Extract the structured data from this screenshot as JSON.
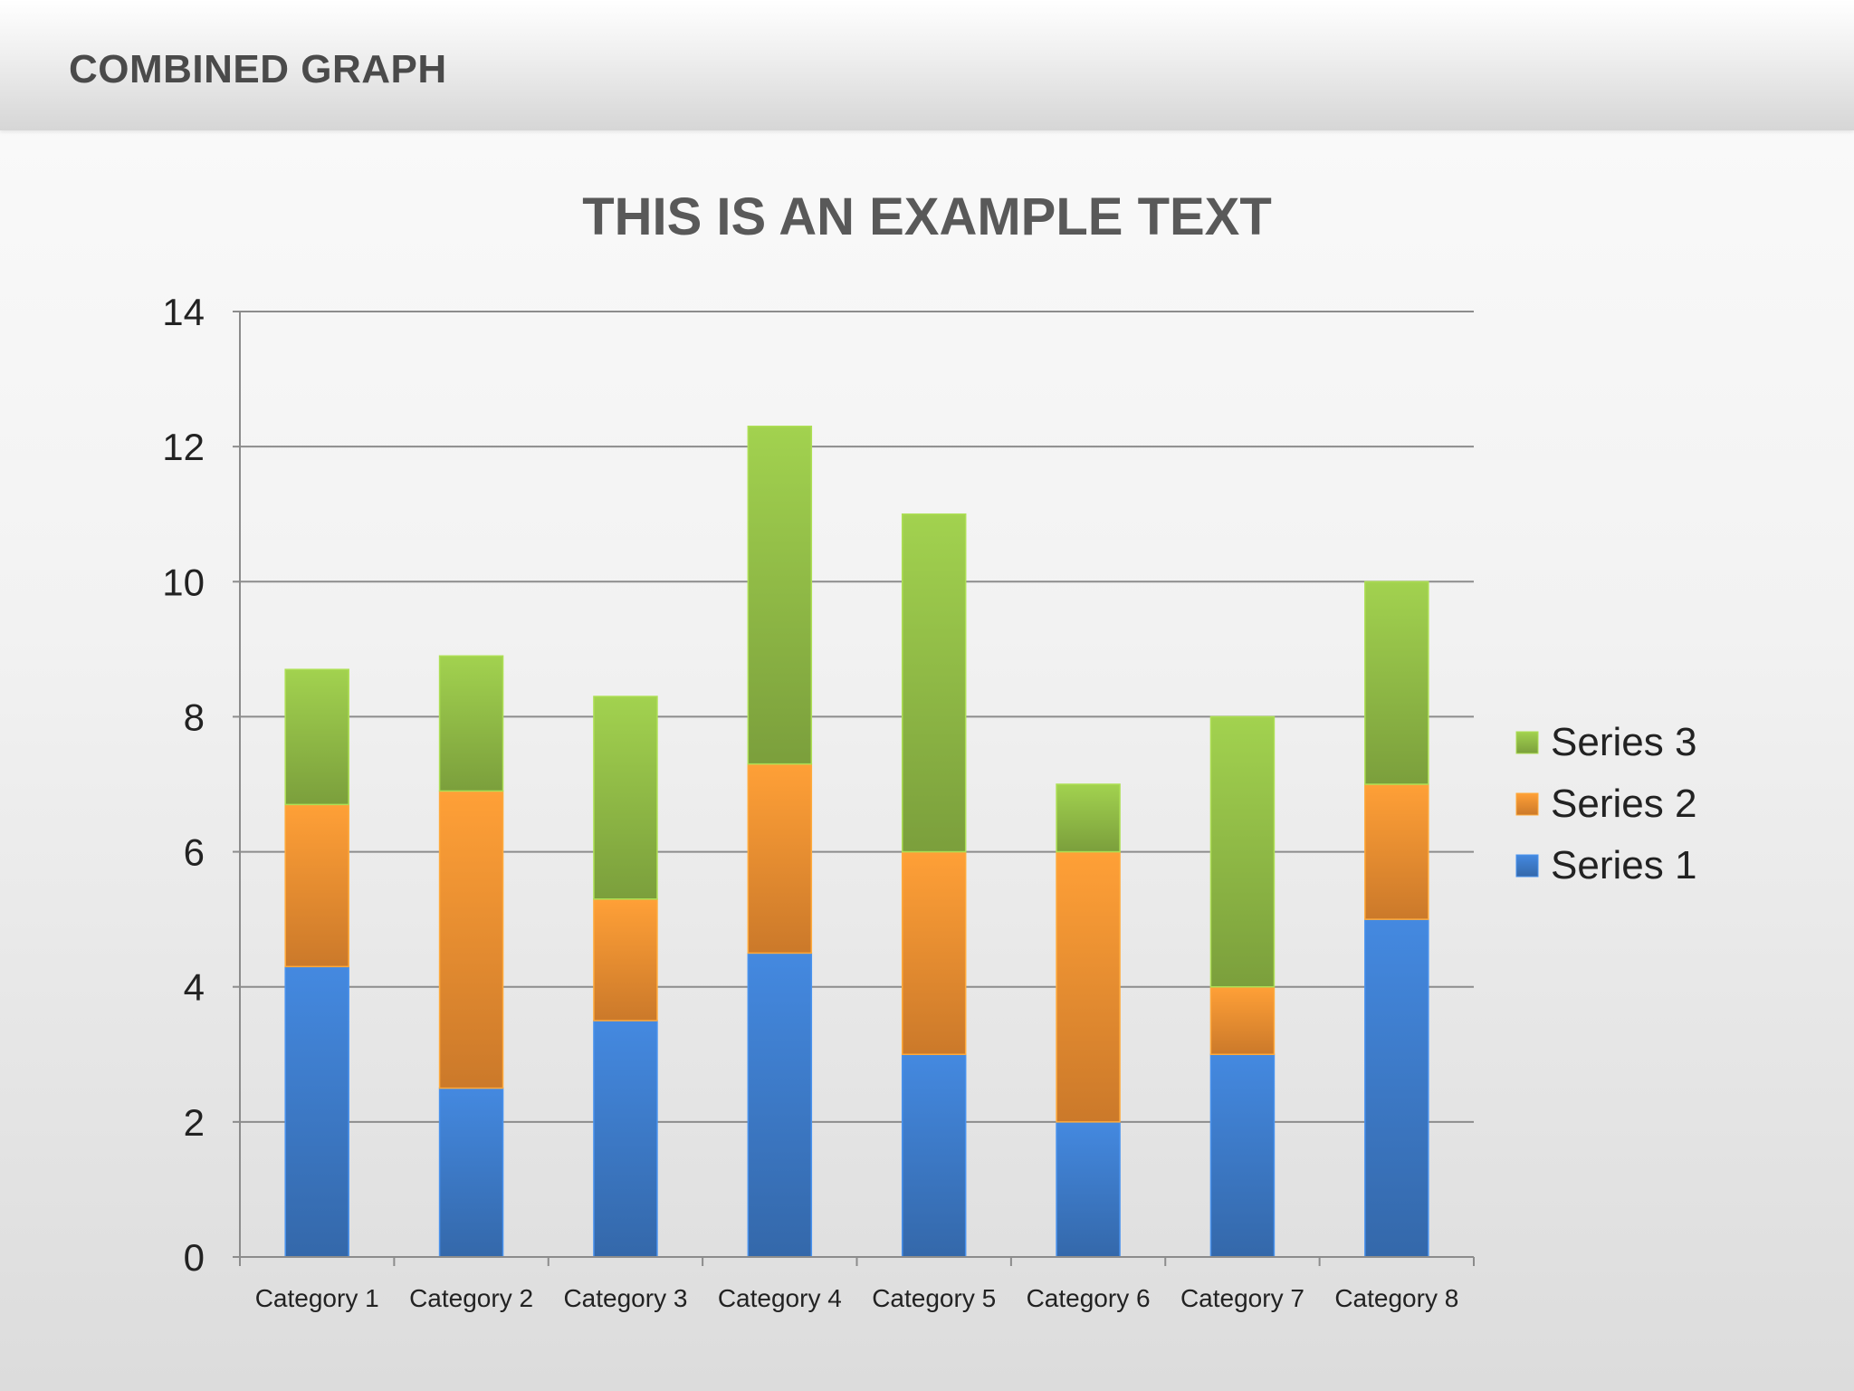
{
  "header": {
    "title": "COMBINED GRAPH"
  },
  "chart_data": {
    "type": "bar",
    "stacked": true,
    "title": "THIS IS AN EXAMPLE TEXT",
    "xlabel": "",
    "ylabel": "",
    "ylim": [
      0,
      14
    ],
    "yticks": [
      0,
      2,
      4,
      6,
      8,
      10,
      12,
      14
    ],
    "grid": true,
    "legend_position": "right",
    "categories": [
      "Category 1",
      "Category 2",
      "Category 3",
      "Category 4",
      "Category 5",
      "Category 6",
      "Category 7",
      "Category 8"
    ],
    "series": [
      {
        "name": "Series 1",
        "color": "#3f7fcf",
        "values": [
          4.3,
          2.5,
          3.5,
          4.5,
          3.0,
          2.0,
          3.0,
          5.0
        ]
      },
      {
        "name": "Series 2",
        "color": "#f79433",
        "values": [
          2.4,
          4.4,
          1.8,
          2.8,
          3.0,
          4.0,
          1.0,
          2.0
        ]
      },
      {
        "name": "Series 3",
        "color": "#96c249",
        "values": [
          2.0,
          2.0,
          3.0,
          5.0,
          5.0,
          1.0,
          4.0,
          3.0
        ]
      }
    ]
  }
}
